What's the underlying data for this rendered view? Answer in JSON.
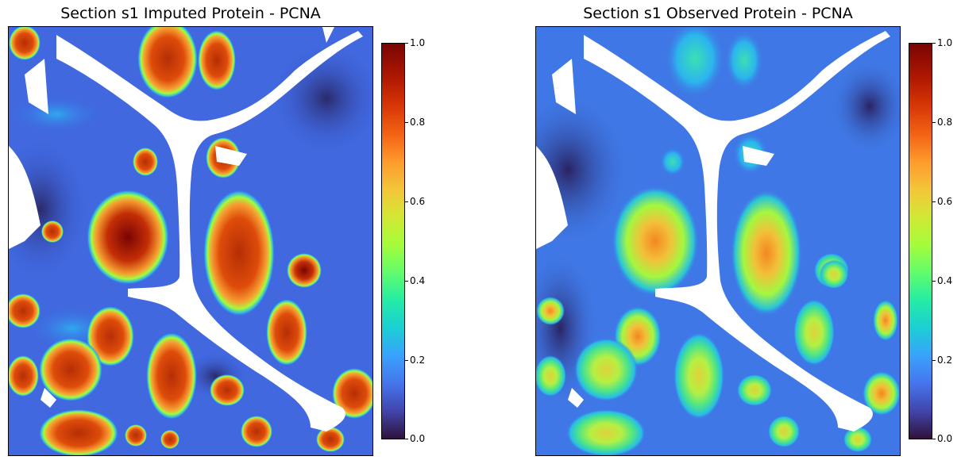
{
  "chart_data": [
    {
      "type": "heatmap",
      "title": "Section s1 Imputed Protein - PCNA",
      "colormap": "turbo",
      "colorbar": {
        "ticks": [
          "0.0",
          "0.2",
          "0.4",
          "0.6",
          "0.8",
          "1.0"
        ],
        "range": [
          0,
          1
        ]
      },
      "axes_visible": false
    },
    {
      "type": "heatmap",
      "title": "Section s1 Observed Protein - PCNA",
      "colormap": "turbo",
      "colorbar": {
        "ticks": [
          "0.0",
          "0.2",
          "0.4",
          "0.6",
          "0.8",
          "1.0"
        ],
        "range": [
          0,
          1
        ]
      },
      "axes_visible": false
    }
  ],
  "colors": {
    "background_low": "#3b63df",
    "low": "#30123b",
    "high": "#7a0403",
    "white": "#ffffff"
  }
}
